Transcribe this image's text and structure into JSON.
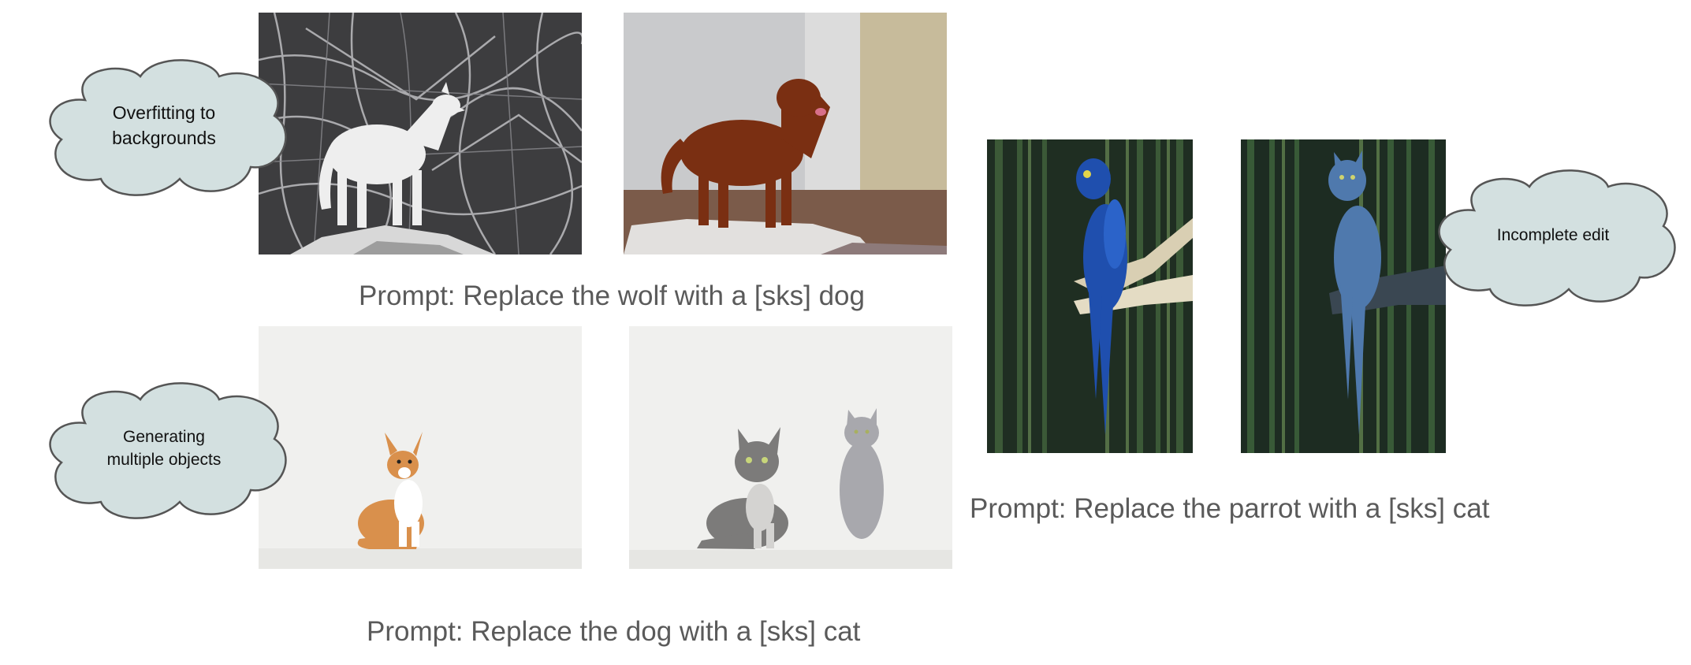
{
  "clouds": {
    "overfitting": "Overfitting to\nbackgrounds",
    "multiple": "Generating\nmultiple objects",
    "incomplete": "Incomplete edit"
  },
  "prompts": {
    "wolf_dog": "Prompt: Replace the wolf with a [sks] dog",
    "dog_cat": "Prompt: Replace the dog with a [sks] cat",
    "parrot_cat": "Prompt: Replace the parrot with a [sks] cat"
  },
  "colors": {
    "cloud_fill": "#d3e0e0",
    "cloud_stroke": "#555555",
    "prompt_text": "#5a5a5a"
  }
}
